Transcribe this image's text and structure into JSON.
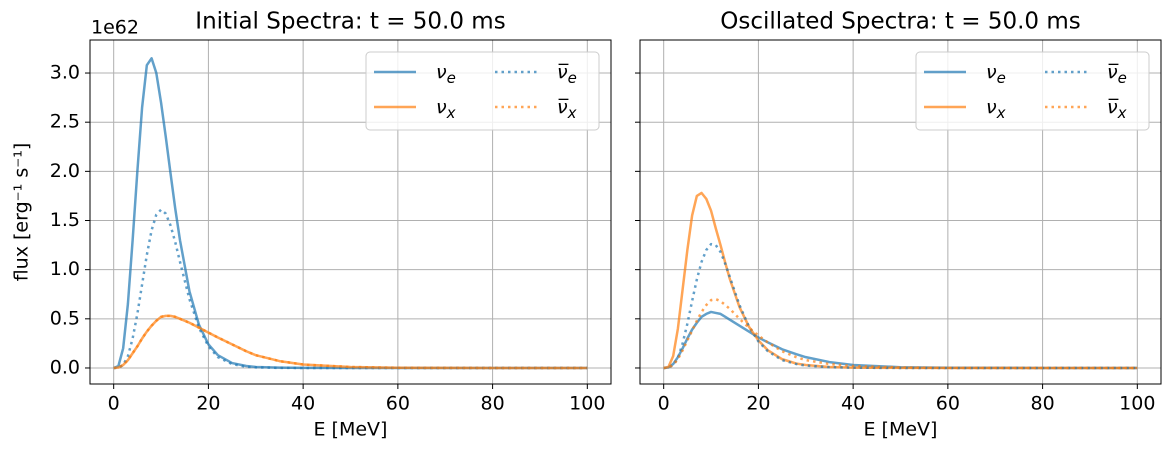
{
  "chart_data": [
    {
      "type": "line",
      "title": "Initial Spectra: t = 50.0 ms",
      "xlabel": "E [MeV]",
      "ylabel": "flux [erg⁻¹ s⁻¹]",
      "offset_label": "1e62",
      "x": [
        0,
        1,
        2,
        3,
        4,
        5,
        6,
        7,
        8,
        9,
        10,
        11,
        12,
        13,
        14,
        16,
        18,
        20,
        22,
        25,
        28,
        30,
        35,
        40,
        50,
        60,
        80,
        100
      ],
      "series": [
        {
          "name": "νe",
          "color": "#1f77b4",
          "dash": "solid",
          "values": [
            0,
            0.02,
            0.2,
            0.65,
            1.3,
            2.0,
            2.65,
            3.08,
            3.15,
            3.0,
            2.7,
            2.35,
            1.98,
            1.62,
            1.3,
            0.78,
            0.44,
            0.24,
            0.13,
            0.05,
            0.02,
            0.01,
            0.003,
            0.001,
            0,
            0,
            0,
            0
          ]
        },
        {
          "name": "νx",
          "color": "#ff7f0e",
          "dash": "solid",
          "values": [
            0,
            0.005,
            0.03,
            0.08,
            0.15,
            0.22,
            0.3,
            0.37,
            0.43,
            0.48,
            0.52,
            0.53,
            0.53,
            0.52,
            0.5,
            0.46,
            0.41,
            0.36,
            0.31,
            0.24,
            0.17,
            0.13,
            0.07,
            0.035,
            0.01,
            0.002,
            0,
            0
          ]
        },
        {
          "name": "ν̅e",
          "color": "#1f77b4",
          "dash": "dotted",
          "values": [
            0,
            0.003,
            0.03,
            0.12,
            0.3,
            0.55,
            0.85,
            1.15,
            1.4,
            1.56,
            1.61,
            1.57,
            1.45,
            1.28,
            1.08,
            0.7,
            0.41,
            0.22,
            0.11,
            0.04,
            0.012,
            0.006,
            0.001,
            0,
            0,
            0,
            0,
            0
          ]
        },
        {
          "name": "ν̅x",
          "color": "#ff7f0e",
          "dash": "dotted",
          "values": [
            0,
            0.005,
            0.03,
            0.08,
            0.15,
            0.22,
            0.3,
            0.37,
            0.43,
            0.48,
            0.52,
            0.53,
            0.53,
            0.52,
            0.5,
            0.46,
            0.41,
            0.36,
            0.31,
            0.24,
            0.17,
            0.13,
            0.07,
            0.035,
            0.01,
            0.002,
            0,
            0
          ]
        }
      ],
      "alpha": 0.7,
      "xlim": [
        -5,
        105
      ],
      "ylim": [
        -0.163,
        3.336
      ],
      "xticks": [
        0,
        20,
        40,
        60,
        80,
        100
      ],
      "yticks": [
        {
          "value": 0,
          "label": "0.0"
        },
        0.5,
        {
          "value": 1,
          "label": "1.0"
        },
        1.5,
        {
          "value": 2,
          "label": "2.0"
        },
        2.5,
        {
          "value": 3,
          "label": "3.0"
        }
      ],
      "grid": true,
      "legend": "upper right",
      "legend_columns": 2
    },
    {
      "type": "line",
      "title": "Oscillated Spectra: t = 50.0 ms",
      "xlabel": "E [MeV]",
      "x": [
        0,
        1,
        2,
        3,
        4,
        5,
        6,
        7,
        8,
        9,
        10,
        11,
        12,
        13,
        14,
        16,
        18,
        20,
        22,
        25,
        28,
        30,
        35,
        40,
        50,
        60,
        80,
        100
      ],
      "series": [
        {
          "name": "νe",
          "color": "#1f77b4",
          "dash": "solid",
          "values": [
            0,
            0.005,
            0.04,
            0.11,
            0.2,
            0.3,
            0.39,
            0.46,
            0.52,
            0.55,
            0.57,
            0.56,
            0.55,
            0.52,
            0.49,
            0.43,
            0.37,
            0.31,
            0.26,
            0.19,
            0.14,
            0.11,
            0.06,
            0.03,
            0.008,
            0.002,
            0,
            0
          ]
        },
        {
          "name": "νx",
          "color": "#ff7f0e",
          "dash": "solid",
          "values": [
            0,
            0.01,
            0.12,
            0.4,
            0.8,
            1.2,
            1.55,
            1.75,
            1.78,
            1.72,
            1.6,
            1.42,
            1.25,
            1.07,
            0.9,
            0.62,
            0.42,
            0.28,
            0.18,
            0.09,
            0.045,
            0.03,
            0.01,
            0.004,
            0.001,
            0,
            0,
            0
          ]
        },
        {
          "name": "ν̅e",
          "color": "#1f77b4",
          "dash": "dotted",
          "values": [
            0,
            0.004,
            0.03,
            0.1,
            0.25,
            0.45,
            0.68,
            0.9,
            1.08,
            1.2,
            1.26,
            1.25,
            1.18,
            1.06,
            0.92,
            0.64,
            0.42,
            0.27,
            0.17,
            0.08,
            0.04,
            0.025,
            0.008,
            0.003,
            0,
            0,
            0,
            0
          ]
        },
        {
          "name": "ν̅x",
          "color": "#ff7f0e",
          "dash": "dotted",
          "values": [
            0,
            0.004,
            0.03,
            0.09,
            0.18,
            0.28,
            0.38,
            0.48,
            0.57,
            0.64,
            0.69,
            0.7,
            0.68,
            0.64,
            0.6,
            0.5,
            0.41,
            0.33,
            0.26,
            0.17,
            0.11,
            0.08,
            0.04,
            0.02,
            0.005,
            0.001,
            0,
            0
          ]
        }
      ],
      "alpha": 0.7,
      "xlim": [
        -5,
        105
      ],
      "ylim": [
        -0.163,
        3.336
      ],
      "xticks": [
        0,
        20,
        40,
        60,
        80,
        100
      ],
      "yticks": [
        0,
        0.5,
        1,
        1.5,
        2,
        2.5,
        3
      ],
      "grid": true,
      "legend": "upper right",
      "legend_columns": 2
    }
  ]
}
